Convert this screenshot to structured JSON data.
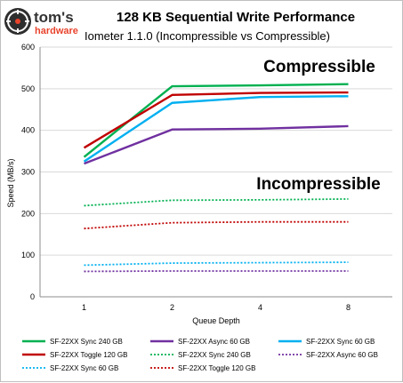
{
  "logo": {
    "brand": "tom's",
    "sub": "hardware"
  },
  "chart_data": {
    "type": "line",
    "title": "128 KB Sequential Write Performance",
    "subtitle": "Iometer 1.1.0 (Incompressible vs Compressible)",
    "xlabel": "Queue Depth",
    "ylabel": "Speed (MB/s)",
    "categories": [
      "1",
      "2",
      "4",
      "8"
    ],
    "ylim": [
      0,
      600
    ],
    "yticks": [
      "0",
      "100",
      "200",
      "300",
      "400",
      "500",
      "600"
    ],
    "grid": true,
    "legend_position": "bottom",
    "annotations": {
      "compressible": "Compressible",
      "incompressible": "Incompressible"
    },
    "series": [
      {
        "name": "SF-22XX Sync 240 GB",
        "color": "#00b050",
        "dash": "solid",
        "values": [
          336,
          506,
          508,
          511
        ]
      },
      {
        "name": "SF-22XX Async 60 GB",
        "color": "#7030a0",
        "dash": "solid",
        "values": [
          320,
          402,
          404,
          410
        ]
      },
      {
        "name": "SF-22XX Sync 60 GB",
        "color": "#00b0f0",
        "dash": "solid",
        "values": [
          325,
          466,
          480,
          482
        ]
      },
      {
        "name": "SF-22XX Toggle 120 GB",
        "color": "#c00000",
        "dash": "solid",
        "values": [
          358,
          485,
          490,
          491
        ]
      },
      {
        "name": "SF-22XX Sync 240 GB",
        "color": "#00b050",
        "dash": "dotted",
        "values": [
          219,
          232,
          233,
          235
        ]
      },
      {
        "name": "SF-22XX Async 60 GB",
        "color": "#7030a0",
        "dash": "dotted",
        "values": [
          61,
          62,
          62,
          62
        ]
      },
      {
        "name": "SF-22XX Sync 60 GB",
        "color": "#00b0f0",
        "dash": "dotted",
        "values": [
          76,
          81,
          82,
          83
        ]
      },
      {
        "name": "SF-22XX Toggle 120 GB",
        "color": "#c00000",
        "dash": "dotted",
        "values": [
          164,
          178,
          180,
          180
        ]
      }
    ]
  }
}
